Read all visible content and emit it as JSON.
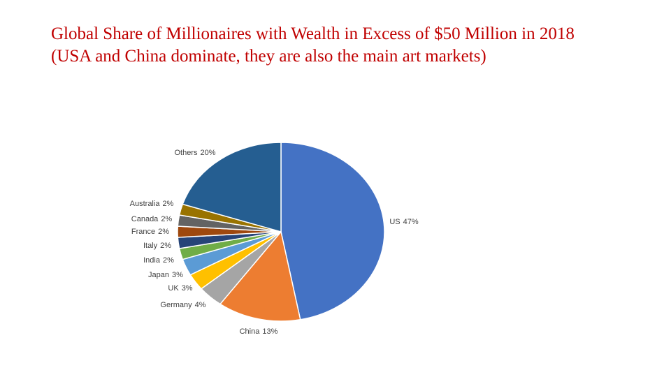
{
  "chart_data": {
    "type": "pie",
    "title": "Global Share of Millionaires with Wealth in Excess of $50 Million in 2018 (USA and China dominate, they are also the main art markets)",
    "categories": [
      "US",
      "China",
      "Germany",
      "UK",
      "Japan",
      "India",
      "Italy",
      "France",
      "Canada",
      "Australia",
      "Others"
    ],
    "values": [
      47,
      13,
      4,
      3,
      3,
      2,
      2,
      2,
      2,
      2,
      20
    ],
    "value_labels": [
      "47%",
      "13%",
      "4%",
      "3%",
      "3%",
      "2%",
      "2%",
      "2%",
      "2%",
      "2%",
      "20%"
    ],
    "colors": [
      "#4472c4",
      "#ed7d31",
      "#a5a5a5",
      "#ffc000",
      "#5b9bd5",
      "#70ad47",
      "#264478",
      "#9e480e",
      "#636363",
      "#997300",
      "#255e91"
    ]
  }
}
